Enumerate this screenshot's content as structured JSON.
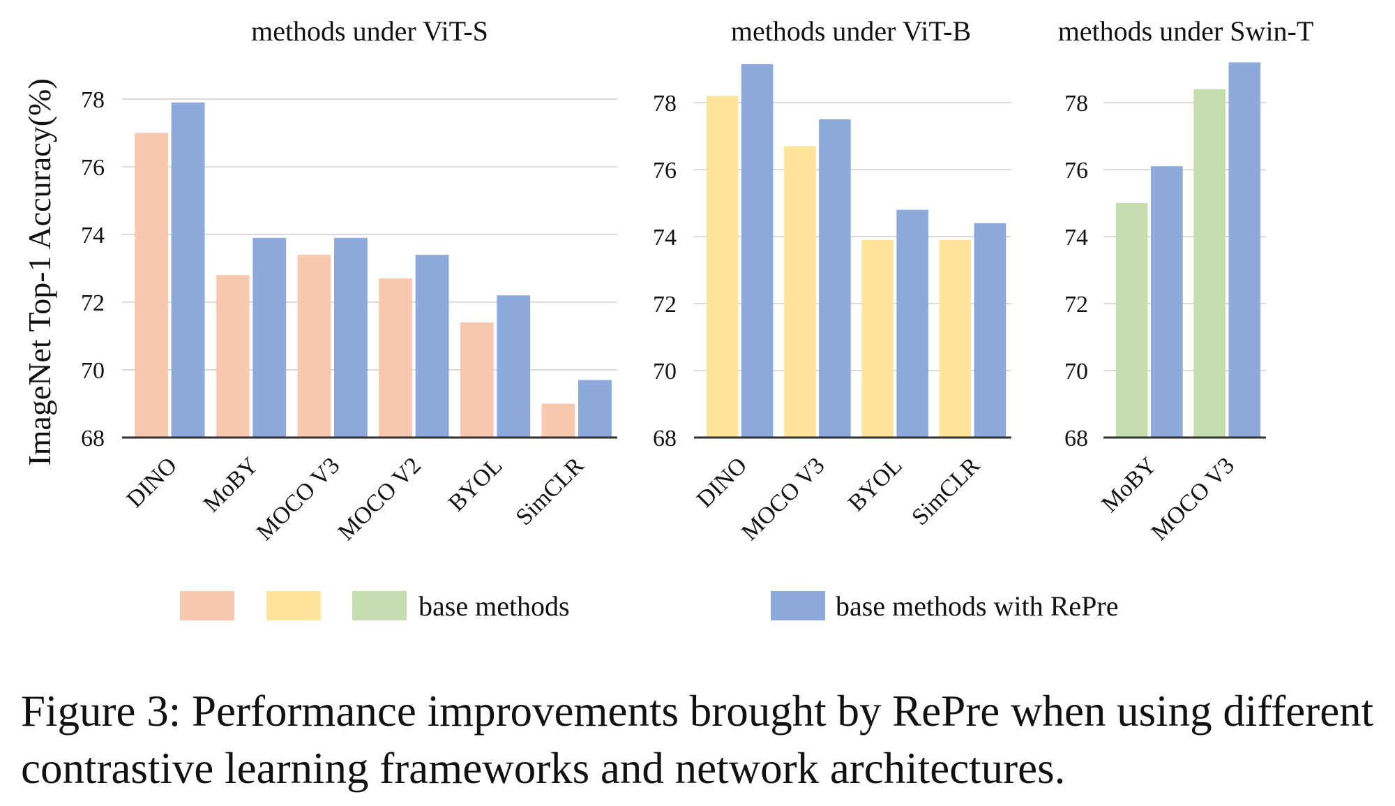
{
  "chart_data": {
    "type": "bar",
    "ylabel": "ImageNet Top-1 Accuracy(%)",
    "ylim": [
      68,
      79
    ],
    "yticks": [
      68,
      70,
      72,
      74,
      76,
      78
    ],
    "grid": true,
    "legend": {
      "placement": "bottom",
      "entries": [
        {
          "name": "",
          "color": "#f8c8b0"
        },
        {
          "name": "",
          "color": "#ffe49a"
        },
        {
          "name": "base methods",
          "color": "#c4deb0"
        },
        {
          "name": "base methods with RePre",
          "color": "#8ea9db"
        }
      ]
    },
    "panels": [
      {
        "title": "methods under ViT-S",
        "categories": [
          "DINO",
          "MoBY",
          "MOCO V3",
          "MOCO V2",
          "BYOL",
          "SimCLR"
        ],
        "series": [
          {
            "name": "base methods",
            "color": "#f8c8b0",
            "values": [
              77.0,
              72.8,
              73.4,
              72.7,
              71.4,
              69.0
            ]
          },
          {
            "name": "base methods with RePre",
            "color": "#8ea9db",
            "values": [
              77.9,
              73.9,
              73.9,
              73.4,
              72.2,
              69.7
            ]
          }
        ]
      },
      {
        "title": "methods under ViT-B",
        "categories": [
          "DINO",
          "MOCO V3",
          "BYOL",
          "SimCLR"
        ],
        "series": [
          {
            "name": "base methods",
            "color": "#ffe49a",
            "values": [
              78.2,
              76.7,
              73.9,
              73.9
            ]
          },
          {
            "name": "base methods with RePre",
            "color": "#8ea9db",
            "values": [
              79.2,
              77.5,
              74.8,
              74.4
            ]
          }
        ]
      },
      {
        "title": "methods under Swin-T",
        "categories": [
          "MoBY",
          "MOCO V3"
        ],
        "series": [
          {
            "name": "base methods",
            "color": "#c4deb0",
            "values": [
              75.0,
              78.4
            ]
          },
          {
            "name": "base methods with RePre",
            "color": "#8ea9db",
            "values": [
              76.1,
              79.2
            ]
          }
        ]
      }
    ]
  },
  "caption": "Figure 3: Performance improvements brought by RePre when using different contrastive learning frameworks and network architectures."
}
